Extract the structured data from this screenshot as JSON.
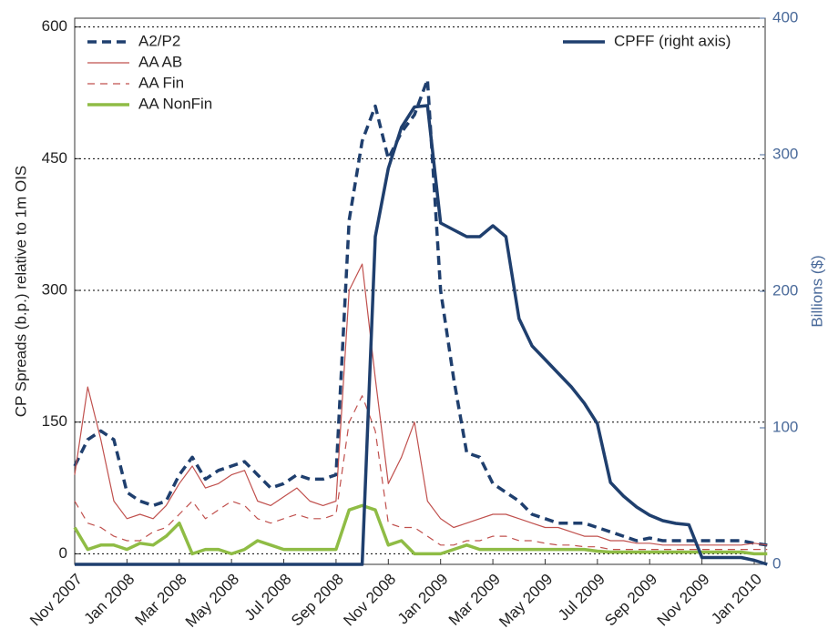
{
  "chart_data": {
    "type": "line",
    "ylabel": "CP Spreads (b.p.) relative to 1m OIS",
    "y2label": "Billions ($)",
    "categories": [
      "Nov 2007",
      null,
      null,
      null,
      "Jan 2008",
      null,
      null,
      null,
      "Mar 2008",
      null,
      null,
      null,
      "May 2008",
      null,
      null,
      null,
      "Jul 2008",
      null,
      null,
      null,
      "Sep 2008",
      null,
      null,
      null,
      "Nov 2008",
      null,
      null,
      null,
      "Jan 2009",
      null,
      null,
      null,
      "Mar 2009",
      null,
      null,
      null,
      "May 2009",
      null,
      null,
      null,
      "Jul 2009",
      null,
      null,
      null,
      "Sep 2009",
      null,
      null,
      null,
      "Nov 2009",
      null,
      null,
      null,
      "Jan 2010",
      null
    ],
    "ylim": [
      -12,
      610
    ],
    "yticks": [
      0,
      150,
      300,
      450,
      600
    ],
    "y2lim": [
      0,
      400
    ],
    "y2ticks": [
      0,
      100,
      200,
      300,
      400
    ],
    "grid": true,
    "series": [
      {
        "name": "A2/P2",
        "color": "#1f3f6e",
        "style": "dashed",
        "linewidth": 3.5,
        "values": [
          100,
          130,
          140,
          130,
          70,
          60,
          55,
          60,
          90,
          110,
          85,
          95,
          100,
          105,
          90,
          75,
          80,
          90,
          85,
          85,
          90,
          380,
          470,
          510,
          450,
          480,
          500,
          540,
          300,
          200,
          115,
          110,
          80,
          70,
          60,
          45,
          40,
          35,
          35,
          35,
          30,
          25,
          20,
          15,
          18,
          15,
          15,
          15,
          15,
          15,
          15,
          15,
          12,
          10
        ]
      },
      {
        "name": "AA AB",
        "color": "#c0504d",
        "style": "solid",
        "linewidth": 1.2,
        "values": [
          90,
          190,
          130,
          60,
          40,
          45,
          40,
          55,
          80,
          100,
          75,
          80,
          90,
          95,
          60,
          55,
          65,
          75,
          60,
          55,
          60,
          300,
          330,
          200,
          80,
          110,
          150,
          60,
          40,
          30,
          35,
          40,
          45,
          45,
          40,
          35,
          30,
          30,
          25,
          20,
          20,
          15,
          15,
          12,
          12,
          10,
          10,
          10,
          10,
          10,
          10,
          10,
          12,
          10
        ]
      },
      {
        "name": "AA Fin",
        "color": "#c0504d",
        "style": "dashed",
        "linewidth": 1.2,
        "values": [
          60,
          35,
          30,
          20,
          15,
          15,
          25,
          30,
          45,
          60,
          40,
          50,
          60,
          55,
          40,
          35,
          40,
          45,
          40,
          40,
          45,
          150,
          180,
          140,
          35,
          30,
          30,
          20,
          10,
          10,
          15,
          15,
          20,
          20,
          15,
          15,
          12,
          10,
          10,
          8,
          8,
          5,
          5,
          5,
          5,
          5,
          5,
          5,
          5,
          5,
          5,
          5,
          5,
          5
        ]
      },
      {
        "name": "AA NonFin",
        "color": "#8fbc45",
        "style": "solid",
        "linewidth": 3.5,
        "values": [
          30,
          5,
          10,
          10,
          5,
          12,
          10,
          20,
          35,
          0,
          5,
          5,
          0,
          5,
          15,
          10,
          5,
          5,
          5,
          5,
          5,
          50,
          55,
          50,
          10,
          15,
          0,
          0,
          0,
          5,
          10,
          5,
          5,
          5,
          5,
          5,
          5,
          5,
          5,
          5,
          3,
          2,
          2,
          2,
          2,
          2,
          2,
          2,
          2,
          2,
          2,
          2,
          0,
          0
        ]
      },
      {
        "name": "CPFF (right axis)",
        "color": "#1f3f6e",
        "style": "solid",
        "linewidth": 3.5,
        "axis": "y2",
        "values": [
          0,
          0,
          0,
          0,
          0,
          0,
          0,
          0,
          0,
          0,
          0,
          0,
          0,
          0,
          0,
          0,
          0,
          0,
          0,
          0,
          0,
          0,
          0,
          240,
          290,
          320,
          335,
          336,
          250,
          245,
          240,
          240,
          248,
          240,
          180,
          160,
          150,
          140,
          130,
          118,
          103,
          60,
          50,
          42,
          36,
          32,
          30,
          29,
          5,
          5,
          5,
          5,
          3,
          0
        ]
      }
    ]
  }
}
